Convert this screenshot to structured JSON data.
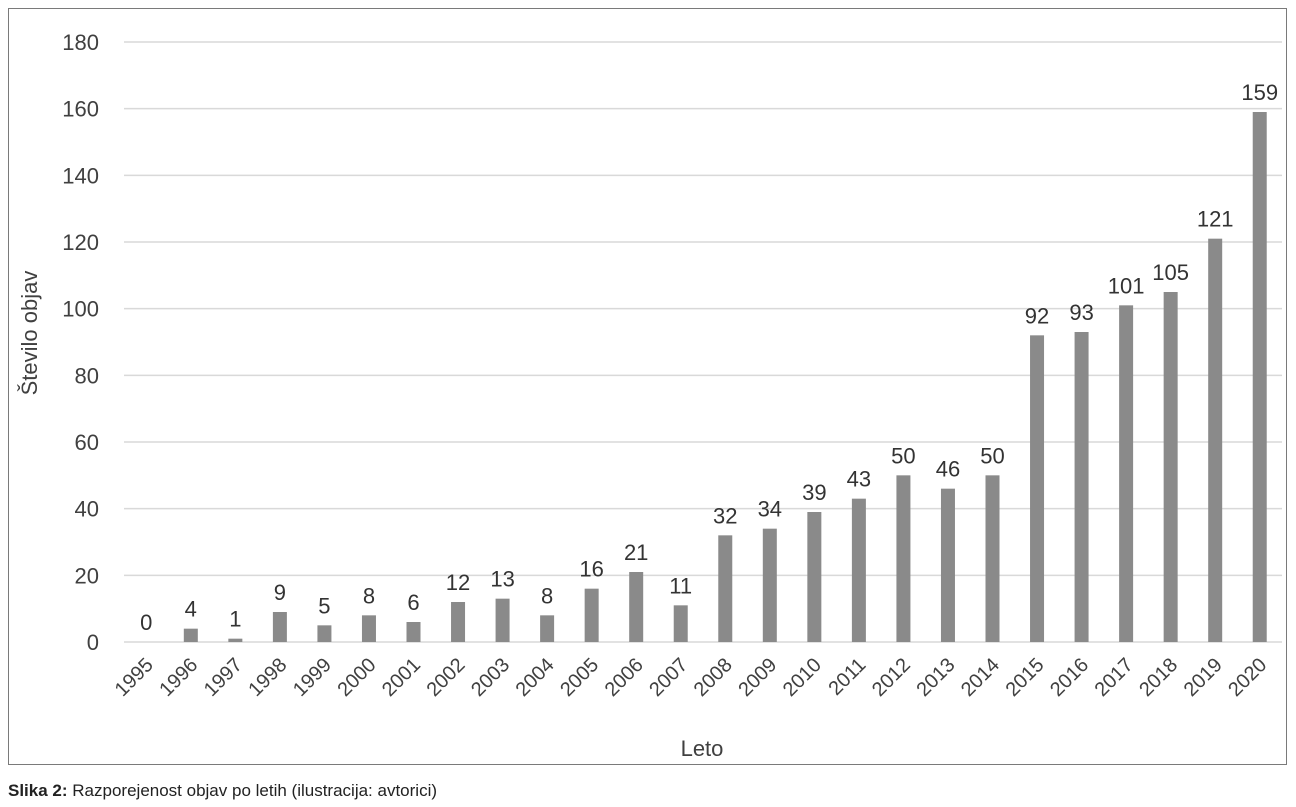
{
  "caption": {
    "label": "Slika 2:",
    "text": "Razporejenost objav po letih (ilustracija: avtorici)"
  },
  "colors": {
    "bar": "#8a8a8a",
    "grid": "#d9d9d9",
    "text": "#404040"
  },
  "chart_data": {
    "type": "bar",
    "title": "",
    "xlabel": "Leto",
    "ylabel": "Število objav",
    "ylim": [
      0,
      180
    ],
    "yticks": [
      0,
      20,
      40,
      60,
      80,
      100,
      120,
      140,
      160,
      180
    ],
    "grid": true,
    "legend": "none",
    "categories": [
      "1995",
      "1996",
      "1997",
      "1998",
      "1999",
      "2000",
      "2001",
      "2002",
      "2003",
      "2004",
      "2005",
      "2006",
      "2007",
      "2008",
      "2009",
      "2010",
      "2011",
      "2012",
      "2013",
      "2014",
      "2015",
      "2016",
      "2017",
      "2018",
      "2019",
      "2020"
    ],
    "values": [
      0,
      4,
      1,
      9,
      5,
      8,
      6,
      12,
      13,
      8,
      16,
      21,
      11,
      32,
      34,
      39,
      43,
      50,
      46,
      50,
      92,
      93,
      101,
      105,
      121,
      159
    ]
  }
}
